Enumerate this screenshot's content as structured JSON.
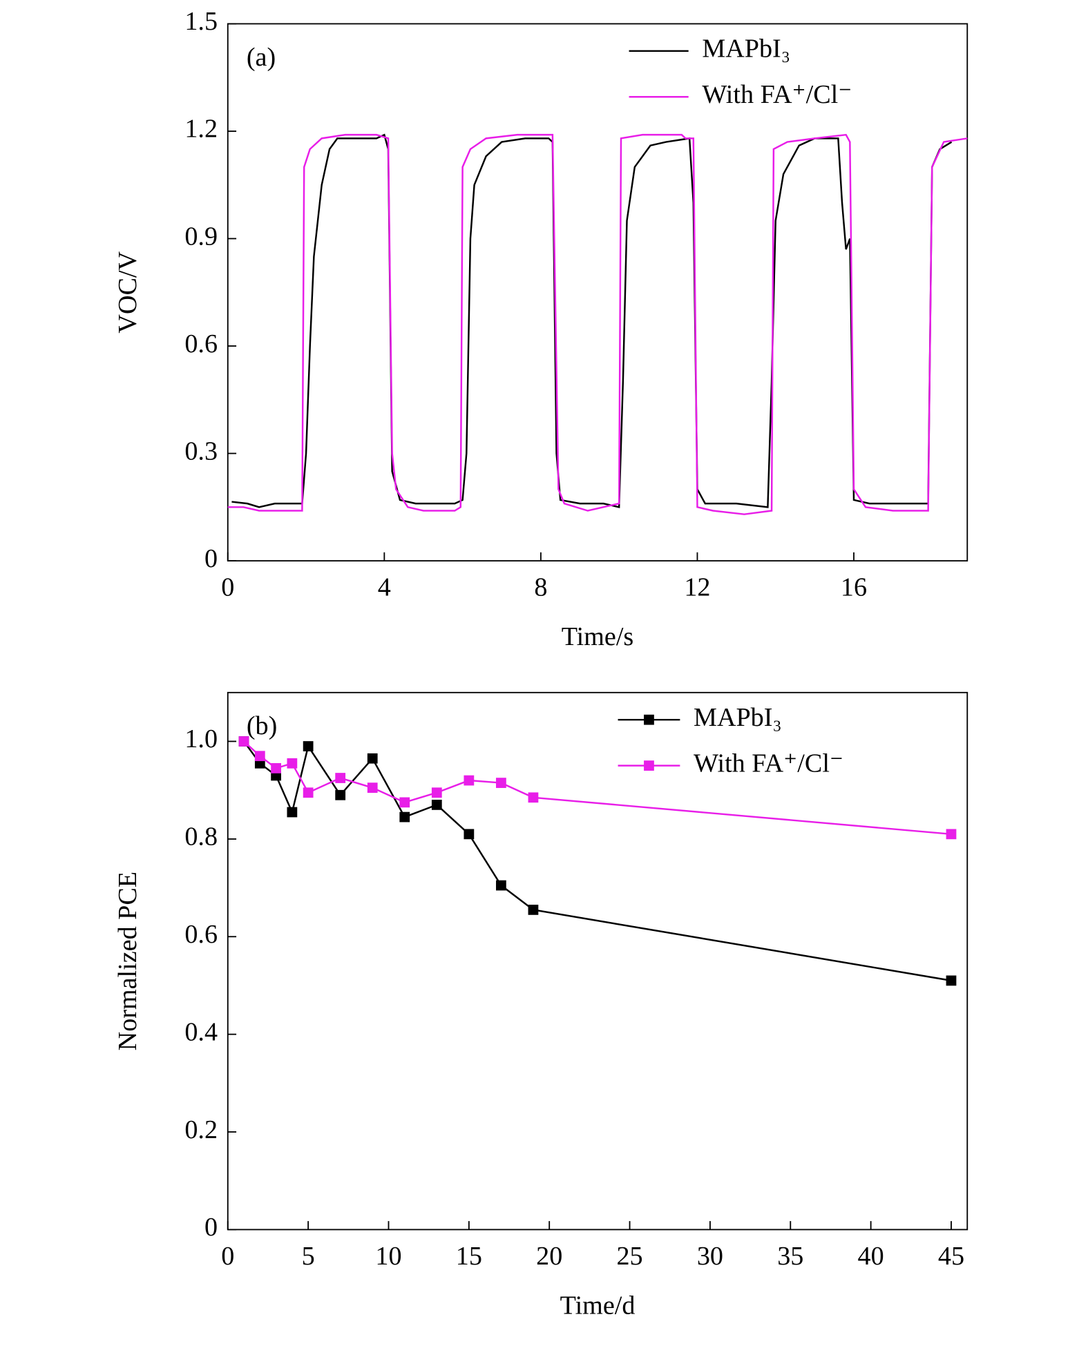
{
  "chart_data": [
    {
      "type": "line",
      "annotation": "(a)",
      "xlabel": "Time/s",
      "ylabel": "VOC/V",
      "xlim": [
        0,
        18.9
      ],
      "xticks": [
        0,
        4,
        8,
        12,
        16
      ],
      "ylim": [
        0,
        1.5
      ],
      "yticks": [
        0,
        0.3,
        0.6,
        0.9,
        1.2,
        1.5
      ],
      "legend": "upper right",
      "markers": false,
      "series": [
        {
          "name": "MAPbI₃",
          "color": "#000000",
          "x": [
            0.1,
            0.5,
            0.8,
            1.2,
            1.6,
            1.9,
            2.0,
            2.1,
            2.2,
            2.4,
            2.6,
            2.8,
            3.2,
            3.8,
            4.0,
            4.1,
            4.2,
            4.4,
            4.8,
            5.2,
            5.8,
            6.0,
            6.1,
            6.2,
            6.3,
            6.6,
            7.0,
            7.6,
            8.2,
            8.3,
            8.4,
            8.5,
            9.0,
            9.6,
            10.0,
            10.1,
            10.2,
            10.4,
            10.8,
            11.2,
            11.8,
            11.9,
            12.0,
            12.2,
            13.0,
            13.8,
            13.9,
            14.0,
            14.2,
            14.6,
            15.0,
            15.6,
            15.7,
            15.8,
            15.9,
            16.0,
            16.4,
            17.0,
            17.8,
            17.9,
            18.0,
            18.2,
            18.5
          ],
          "values": [
            0.165,
            0.16,
            0.15,
            0.16,
            0.16,
            0.16,
            0.3,
            0.6,
            0.85,
            1.05,
            1.15,
            1.18,
            1.18,
            1.18,
            1.19,
            1.15,
            0.25,
            0.17,
            0.16,
            0.16,
            0.16,
            0.17,
            0.3,
            0.9,
            1.05,
            1.13,
            1.17,
            1.18,
            1.18,
            1.17,
            0.3,
            0.17,
            0.16,
            0.16,
            0.15,
            0.5,
            0.95,
            1.1,
            1.16,
            1.17,
            1.18,
            1.0,
            0.2,
            0.16,
            0.16,
            0.15,
            0.5,
            0.95,
            1.08,
            1.16,
            1.18,
            1.18,
            1.0,
            0.87,
            0.9,
            0.17,
            0.16,
            0.16,
            0.16,
            0.16,
            1.1,
            1.15,
            1.17
          ]
        },
        {
          "name": "With FA⁺/Cl⁻",
          "color": "#e81ee8",
          "x": [
            0,
            0.4,
            0.8,
            1.5,
            1.9,
            1.95,
            2.1,
            2.4,
            3.0,
            3.8,
            4.1,
            4.2,
            4.3,
            4.6,
            5.0,
            5.8,
            5.95,
            6.0,
            6.2,
            6.6,
            7.4,
            8.3,
            8.45,
            8.6,
            9.2,
            10.0,
            10.05,
            10.6,
            11.6,
            11.7,
            11.9,
            12.0,
            12.4,
            13.2,
            13.9,
            13.95,
            14.3,
            15.0,
            15.8,
            15.9,
            16.0,
            16.3,
            17.0,
            17.9,
            18.0,
            18.3,
            18.9
          ],
          "values": [
            0.15,
            0.15,
            0.14,
            0.14,
            0.14,
            1.1,
            1.15,
            1.18,
            1.19,
            1.19,
            1.18,
            0.3,
            0.2,
            0.15,
            0.14,
            0.14,
            0.15,
            1.1,
            1.15,
            1.18,
            1.19,
            1.19,
            0.2,
            0.16,
            0.14,
            0.16,
            1.18,
            1.19,
            1.19,
            1.18,
            1.18,
            0.15,
            0.14,
            0.13,
            0.14,
            1.15,
            1.17,
            1.18,
            1.19,
            1.17,
            0.2,
            0.15,
            0.14,
            0.14,
            1.1,
            1.17,
            1.18
          ]
        }
      ]
    },
    {
      "type": "line",
      "annotation": "(b)",
      "xlabel": "Time/d",
      "ylabel": "Normalized PCE",
      "xlim": [
        0,
        46
      ],
      "xticks": [
        0,
        5,
        10,
        15,
        20,
        25,
        30,
        35,
        40,
        45
      ],
      "ylim": [
        0,
        1.1
      ],
      "yticks": [
        0,
        0.2,
        0.4,
        0.6,
        0.8,
        {
          "value": 1.0,
          "label": "1.0"
        }
      ],
      "legend": "upper right",
      "markers": true,
      "series": [
        {
          "name": "MAPbI₃",
          "color": "#000000",
          "x": [
            1,
            2,
            3,
            4,
            5,
            7,
            9,
            11,
            13,
            15,
            17,
            19,
            45
          ],
          "values": [
            1.0,
            0.955,
            0.93,
            0.855,
            0.99,
            0.89,
            0.965,
            0.845,
            0.87,
            0.81,
            0.705,
            0.655,
            0.51
          ]
        },
        {
          "name": "With FA⁺/Cl⁻",
          "color": "#e81ee8",
          "x": [
            1,
            2,
            3,
            4,
            5,
            7,
            9,
            11,
            13,
            15,
            17,
            19,
            45
          ],
          "values": [
            1.0,
            0.97,
            0.945,
            0.955,
            0.895,
            0.925,
            0.905,
            0.875,
            0.895,
            0.92,
            0.915,
            0.885,
            0.81
          ]
        }
      ]
    }
  ]
}
